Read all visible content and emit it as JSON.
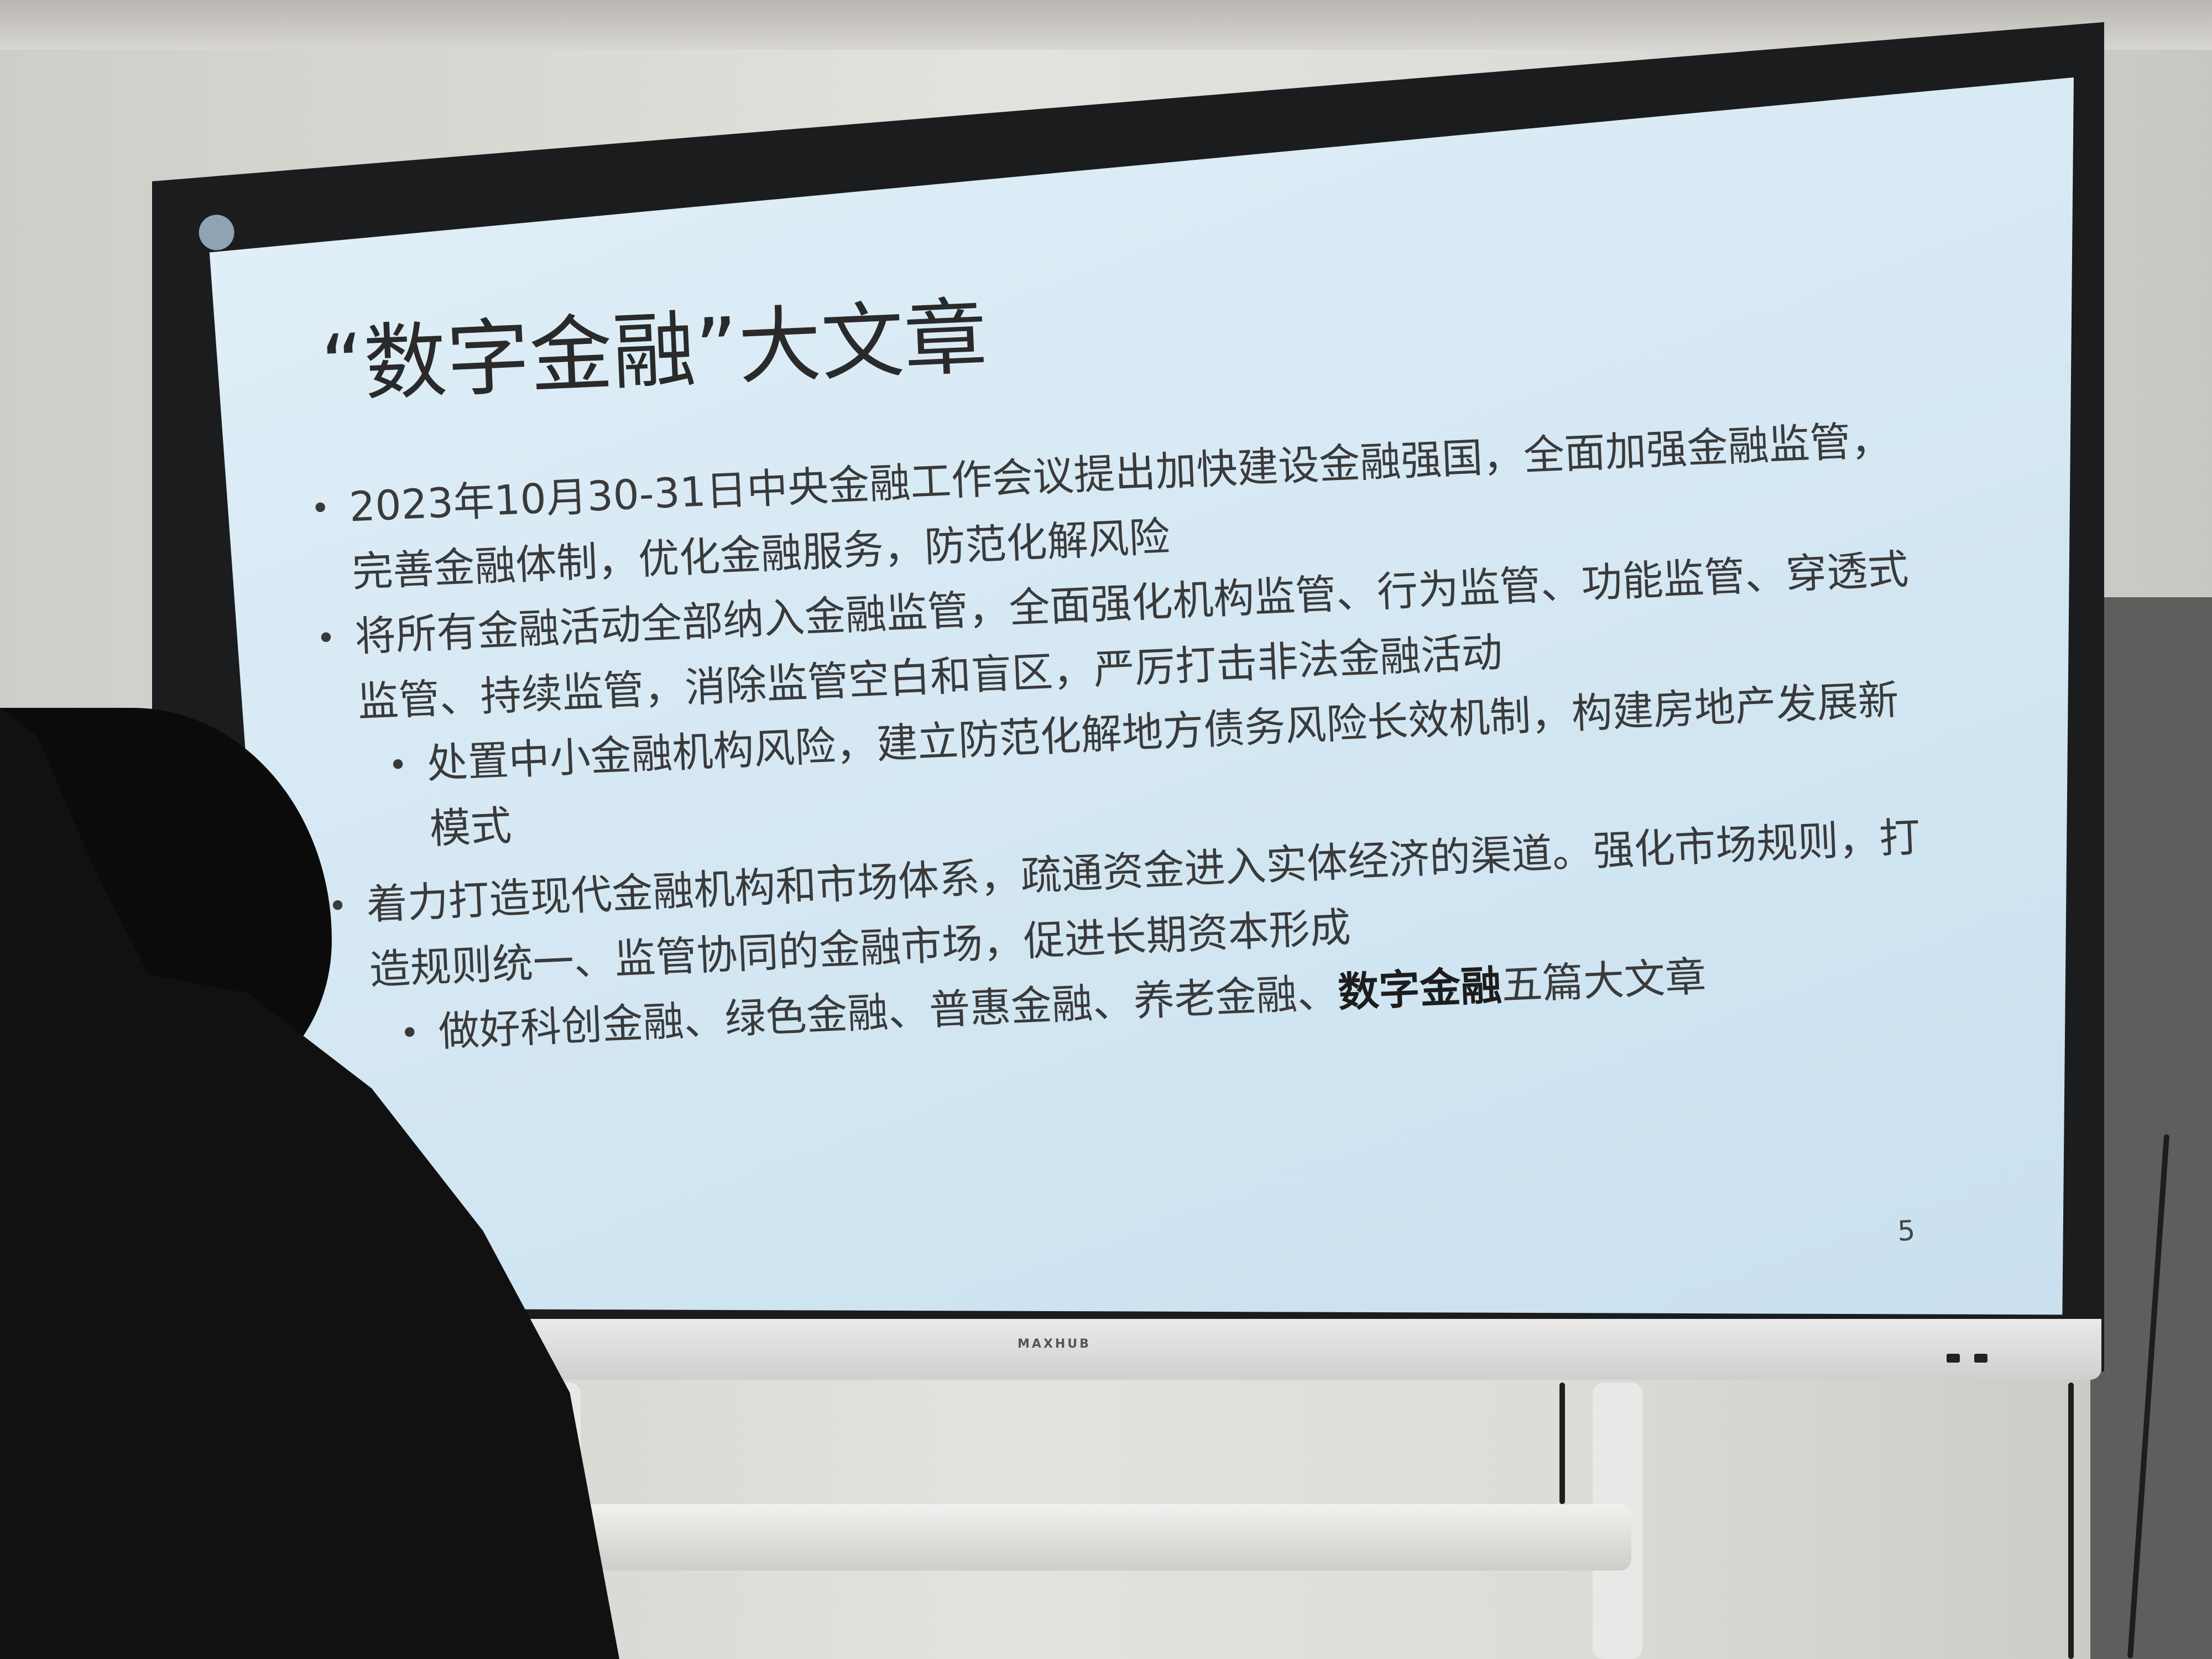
{
  "slide": {
    "title": "“数字金融”大文章",
    "bullets": [
      {
        "text": "2023年10月30-31日中央金融工作会议提出加快建设金融强国，全面加强金融监管，完善金融体制，优化金融服务，防范化解风险"
      },
      {
        "text": "将所有金融活动全部纳入金融监管，全面强化机构监管、行为监管、功能监管、穿透式监管、持续监管，消除监管空白和盲区，严厉打击非法金融活动"
      },
      {
        "text": "处置中小金融机构风险，建立防范化解地方债务风险长效机制，构建房地产发展新模式"
      },
      {
        "text": "着力打造现代金融机构和市场体系，疏通资金进入实体经济的渠道。强化市场规则，打造规则统一、监管协同的金融市场，促进长期资本形成"
      },
      {
        "text_before": "做好科创金融、绿色金融、普惠金融、养老金融、",
        "text_strong": "数字金融",
        "text_after": "五篇大文章"
      }
    ],
    "page_number": "5"
  },
  "device": {
    "brand": "MAXHUB"
  },
  "colors": {
    "screen": "#d7e9f4",
    "bezel": "#1b1c1e",
    "text": "#3a3a3a"
  }
}
